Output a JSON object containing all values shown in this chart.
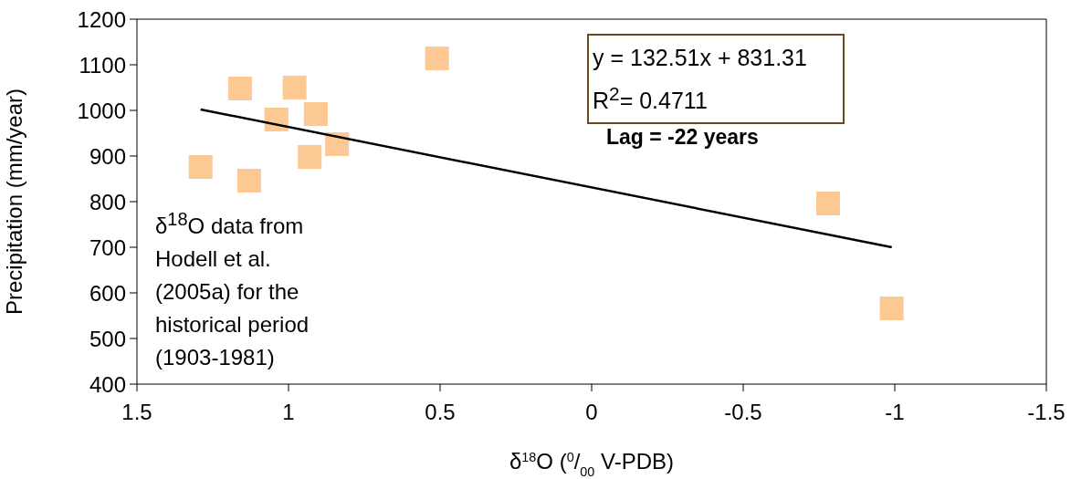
{
  "chart_data": {
    "type": "scatter",
    "xlabel": "δ$^{18}$O ($^{0}$/$_{00}$ V-PDB)",
    "ylabel": "Precipitation (mm/year)",
    "xlim": [
      1.5,
      -1.5
    ],
    "xticks": [
      1.5,
      1,
      0.5,
      0,
      -0.5,
      -1,
      -1.5
    ],
    "ylim": [
      400,
      1200
    ],
    "yticks": [
      400,
      500,
      600,
      700,
      800,
      900,
      1000,
      1100,
      1200
    ],
    "grid": false,
    "legend": false,
    "series": [
      {
        "marker": "square",
        "color": "#fcc893",
        "x": [
          1.29,
          1.16,
          1.13,
          1.04,
          0.98,
          0.91,
          0.93,
          0.84,
          0.51,
          -0.78,
          -0.99
        ],
        "values": [
          876,
          1048,
          846,
          980,
          1050,
          992,
          898,
          926,
          1114,
          796,
          566
        ]
      },
      {
        "type": "line",
        "marker": "none",
        "color": "#000000",
        "line_style": "solid",
        "x": [
          1.29,
          -0.99
        ],
        "values": [
          1002,
          700
        ]
      }
    ],
    "annotations": [
      "y = 132.51x + 831.31\nR$^{2}$= 0.4711",
      "Lag = -22 years",
      "δ$^{18}$O data from Hodell et al. (2005a) for the historical period (1903-1981)"
    ]
  }
}
